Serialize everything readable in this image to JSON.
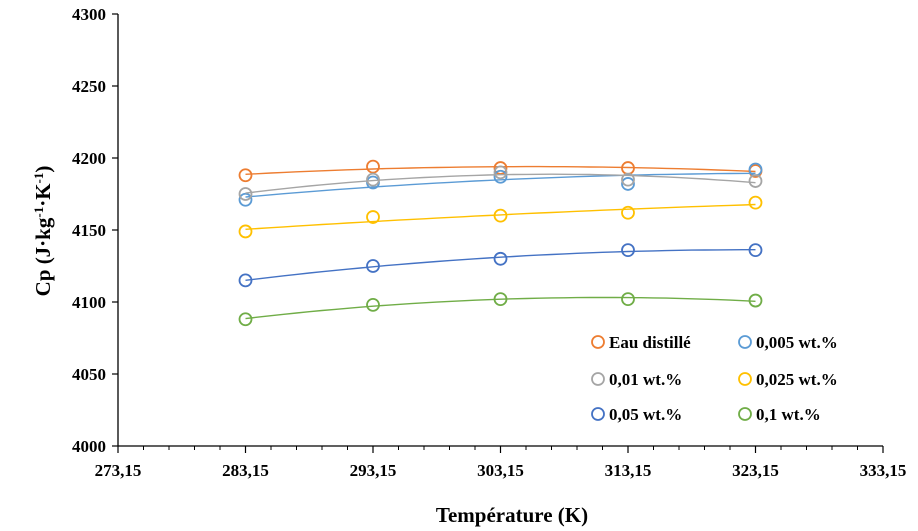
{
  "chart_data": {
    "type": "scatter",
    "title": "",
    "xlabel": "Température (K)",
    "ylabel_base": "Cp (J·kg",
    "ylabel_sup1": "-1",
    "ylabel_mid": "·K",
    "ylabel_sup2": "-1",
    "ylabel_end": ")",
    "xlim": [
      273.15,
      333.15
    ],
    "ylim": [
      4000,
      4300
    ],
    "x_ticks": [
      273.15,
      283.15,
      293.15,
      303.15,
      313.15,
      323.15,
      333.15
    ],
    "x_tick_labels": [
      "273,15",
      "283,15",
      "293,15",
      "303,15",
      "313,15",
      "323,15",
      "333,15"
    ],
    "y_ticks": [
      4000,
      4050,
      4100,
      4150,
      4200,
      4250,
      4300
    ],
    "y_tick_labels": [
      "4000",
      "4050",
      "4100",
      "4150",
      "4200",
      "4250",
      "4300"
    ],
    "grid": false,
    "legend_position": "bottom-right",
    "x": [
      283.15,
      293.15,
      303.15,
      313.15,
      323.15
    ],
    "series": [
      {
        "name": "Eau distillé",
        "color": "#ED7D31",
        "values": [
          4188,
          4194,
          4193,
          4193,
          4191
        ]
      },
      {
        "name": "0,005 wt.%",
        "color": "#5B9BD5",
        "values": [
          4171,
          4183,
          4187,
          4182,
          4192
        ]
      },
      {
        "name": "0,01 wt.%",
        "color": "#A5A5A5",
        "values": [
          4175,
          4185,
          4190,
          4185,
          4184
        ]
      },
      {
        "name": "0,025 wt.%",
        "color": "#FFC000",
        "values": [
          4149,
          4159,
          4160,
          4162,
          4169
        ]
      },
      {
        "name": "0,05 wt.%",
        "color": "#4472C4",
        "values": [
          4115,
          4125,
          4130,
          4136,
          4136
        ]
      },
      {
        "name": "0,1 wt.%",
        "color": "#70AD47",
        "values": [
          4088,
          4098,
          4102,
          4102,
          4101
        ]
      }
    ]
  }
}
